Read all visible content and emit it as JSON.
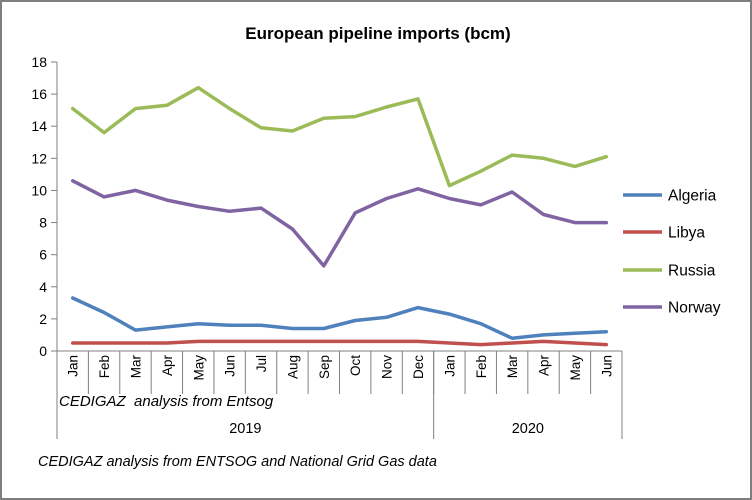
{
  "chart_data": {
    "type": "line",
    "title": "European pipeline imports (bcm)",
    "categories": [
      "Jan",
      "Feb",
      "Mar",
      "Apr",
      "May",
      "Jun",
      "Jul",
      "Aug",
      "Sep",
      "Oct",
      "Nov",
      "Dec",
      "Jan",
      "Feb",
      "Mar",
      "Apr",
      "May",
      "Jun"
    ],
    "year_groups": [
      {
        "label": "2019",
        "months": 12
      },
      {
        "label": "2020",
        "months": 6
      }
    ],
    "ylim": [
      0,
      18
    ],
    "ytick_step": 2,
    "grid": false,
    "legend_position": "right",
    "series": [
      {
        "name": "Algeria",
        "color": "#4F81BD",
        "values": [
          3.3,
          2.4,
          1.3,
          1.5,
          1.7,
          1.6,
          1.6,
          1.4,
          1.4,
          1.9,
          2.1,
          2.7,
          2.3,
          1.7,
          0.8,
          1.0,
          1.1,
          1.2
        ]
      },
      {
        "name": "Libya",
        "color": "#C0504D",
        "values": [
          0.5,
          0.5,
          0.5,
          0.5,
          0.6,
          0.6,
          0.6,
          0.6,
          0.6,
          0.6,
          0.6,
          0.6,
          0.5,
          0.4,
          0.5,
          0.6,
          0.5,
          0.4
        ]
      },
      {
        "name": "Russia",
        "color": "#9BBB59",
        "values": [
          15.1,
          13.6,
          15.1,
          15.3,
          16.4,
          15.1,
          13.9,
          13.7,
          14.5,
          14.6,
          15.2,
          15.7,
          10.3,
          11.2,
          12.2,
          12.0,
          11.5,
          12.1
        ]
      },
      {
        "name": "Norway",
        "color": "#8064A2",
        "values": [
          10.6,
          9.6,
          10.0,
          9.4,
          9.0,
          8.7,
          8.9,
          7.6,
          5.3,
          8.6,
          9.5,
          10.1,
          9.5,
          9.1,
          9.9,
          8.5,
          8.0,
          8.0
        ]
      }
    ],
    "annotation": "CEDIGAZ  analysis from Entsog"
  },
  "caption": "CEDIGAZ analysis from ENTSOG and National Grid Gas data"
}
